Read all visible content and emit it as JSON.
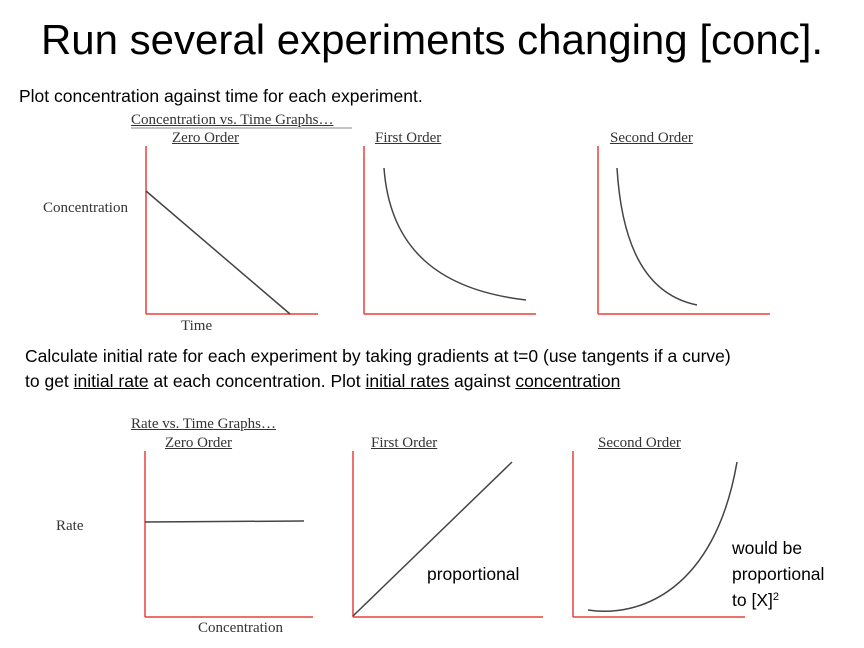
{
  "slide": {
    "title": "Run several experiments changing [conc].",
    "instruction_1": "Plot concentration against time for each experiment.",
    "instruction_2_line1": "Calculate initial rate for each experiment by taking gradients at t=0 (use tangents if a curve)",
    "instruction_2_line2": {
      "p1": "to get ",
      "u1": "initial rate",
      "p2": " at each concentration. Plot ",
      "u2": "initial rates",
      "p3": " against ",
      "u3": "concentration"
    }
  },
  "conc_vs_time": {
    "heading": "Concentration vs. Time Graphs…",
    "ylabel": "Concentration",
    "xlabel": "Time",
    "panels": [
      {
        "title": "Zero Order"
      },
      {
        "title": "First Order"
      },
      {
        "title": "Second Order"
      }
    ]
  },
  "rate_vs_conc": {
    "heading": "Rate vs. Time Graphs…",
    "ylabel": "Rate",
    "xlabel": "Concentration",
    "panels": [
      {
        "title": "Zero Order"
      },
      {
        "title": "First Order",
        "annotation": "proportional"
      },
      {
        "title": "Second Order",
        "annotation_line1": "would be",
        "annotation_line2": "proportional",
        "annotation_line3": "to [X]",
        "annotation_sup": "2"
      }
    ]
  },
  "colors": {
    "axis": "#e8413c",
    "curve": "#444444"
  }
}
